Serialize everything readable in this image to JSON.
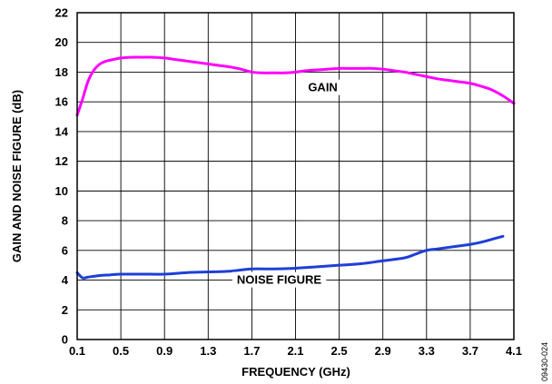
{
  "figure_id": "09430-024",
  "chart_data": {
    "type": "line",
    "xlabel": "FREQUENCY (GHz)",
    "ylabel": "GAIN AND NOISE FIGURE (dB)",
    "xlim": [
      0.1,
      4.1
    ],
    "ylim": [
      0,
      22
    ],
    "x_ticks": [
      "0.1",
      "0.5",
      "0.9",
      "1.3",
      "1.7",
      "2.1",
      "2.5",
      "2.9",
      "3.3",
      "3.7",
      "4.1"
    ],
    "y_ticks": [
      "0",
      "2",
      "4",
      "6",
      "8",
      "10",
      "12",
      "14",
      "16",
      "18",
      "20",
      "22"
    ],
    "grid": true,
    "series": [
      {
        "name": "GAIN",
        "color": "#ff00ff",
        "x": [
          0.1,
          0.15,
          0.2,
          0.25,
          0.3,
          0.35,
          0.4,
          0.5,
          0.6,
          0.7,
          0.8,
          0.9,
          1.0,
          1.1,
          1.2,
          1.3,
          1.4,
          1.5,
          1.6,
          1.7,
          1.8,
          1.9,
          2.0,
          2.1,
          2.2,
          2.3,
          2.4,
          2.5,
          2.6,
          2.7,
          2.8,
          2.9,
          3.0,
          3.1,
          3.2,
          3.3,
          3.4,
          3.5,
          3.6,
          3.7,
          3.8,
          3.9,
          4.0,
          4.1
        ],
        "y": [
          15.1,
          16.2,
          17.4,
          18.1,
          18.5,
          18.7,
          18.8,
          18.95,
          19.0,
          19.0,
          19.0,
          18.95,
          18.85,
          18.75,
          18.65,
          18.55,
          18.45,
          18.35,
          18.2,
          18.0,
          17.95,
          17.95,
          17.95,
          18.0,
          18.1,
          18.15,
          18.2,
          18.25,
          18.25,
          18.25,
          18.25,
          18.2,
          18.1,
          18.0,
          17.85,
          17.7,
          17.55,
          17.45,
          17.35,
          17.25,
          17.05,
          16.8,
          16.4,
          15.9
        ]
      },
      {
        "name": "NOISE FIGURE",
        "color": "#1f3fd6",
        "x": [
          0.1,
          0.15,
          0.2,
          0.3,
          0.4,
          0.5,
          0.7,
          0.9,
          1.1,
          1.3,
          1.5,
          1.7,
          1.9,
          2.1,
          2.3,
          2.5,
          2.7,
          2.9,
          3.1,
          3.2,
          3.3,
          3.4,
          3.5,
          3.6,
          3.7,
          3.8,
          3.9,
          4.0
        ],
        "y": [
          4.5,
          4.15,
          4.2,
          4.3,
          4.35,
          4.4,
          4.4,
          4.4,
          4.5,
          4.55,
          4.6,
          4.75,
          4.75,
          4.8,
          4.9,
          5.0,
          5.1,
          5.3,
          5.5,
          5.75,
          6.0,
          6.1,
          6.2,
          6.3,
          6.4,
          6.55,
          6.75,
          6.95
        ]
      }
    ]
  }
}
